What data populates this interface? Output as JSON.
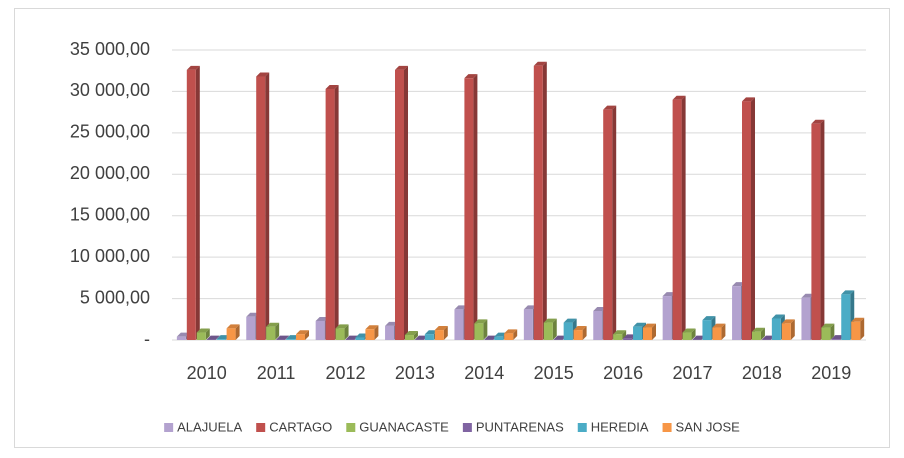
{
  "chart_data": {
    "type": "bar",
    "categories": [
      "2010",
      "2011",
      "2012",
      "2013",
      "2014",
      "2015",
      "2016",
      "2017",
      "2018",
      "2019"
    ],
    "series": [
      {
        "name": "ALAJUELA",
        "color": "#b3a2cf",
        "values": [
          400,
          2800,
          2300,
          1700,
          3700,
          3700,
          3500,
          5300,
          6500,
          5100
        ]
      },
      {
        "name": "CARTAGO",
        "color": "#c0504d",
        "values": [
          32600,
          31800,
          30300,
          32600,
          31600,
          33100,
          27800,
          29000,
          28800,
          26100
        ]
      },
      {
        "name": "GUANACASTE",
        "color": "#9bbb59",
        "values": [
          900,
          1600,
          1400,
          600,
          2000,
          2100,
          700,
          900,
          1000,
          1500
        ]
      },
      {
        "name": "PUNTARENAS",
        "color": "#8064a2",
        "values": [
          50,
          50,
          50,
          50,
          50,
          50,
          200,
          50,
          50,
          100
        ]
      },
      {
        "name": "HEREDIA",
        "color": "#4bacc6",
        "values": [
          100,
          100,
          300,
          700,
          400,
          2100,
          1600,
          2400,
          2600,
          5500
        ]
      },
      {
        "name": "SAN JOSE",
        "color": "#f79646",
        "values": [
          1400,
          700,
          1300,
          1200,
          800,
          1200,
          1500,
          1500,
          2000,
          2200
        ]
      }
    ],
    "ylim": [
      0,
      35000
    ],
    "yticks": [
      {
        "value": 0,
        "label": "-"
      },
      {
        "value": 5000,
        "label": "5 000,00"
      },
      {
        "value": 10000,
        "label": "10 000,00"
      },
      {
        "value": 15000,
        "label": "15 000,00"
      },
      {
        "value": 20000,
        "label": "20 000,00"
      },
      {
        "value": 25000,
        "label": "25 000,00"
      },
      {
        "value": 30000,
        "label": "30 000,00"
      },
      {
        "value": 35000,
        "label": "35 000,00"
      }
    ],
    "grid": true,
    "legend": "bottom"
  }
}
